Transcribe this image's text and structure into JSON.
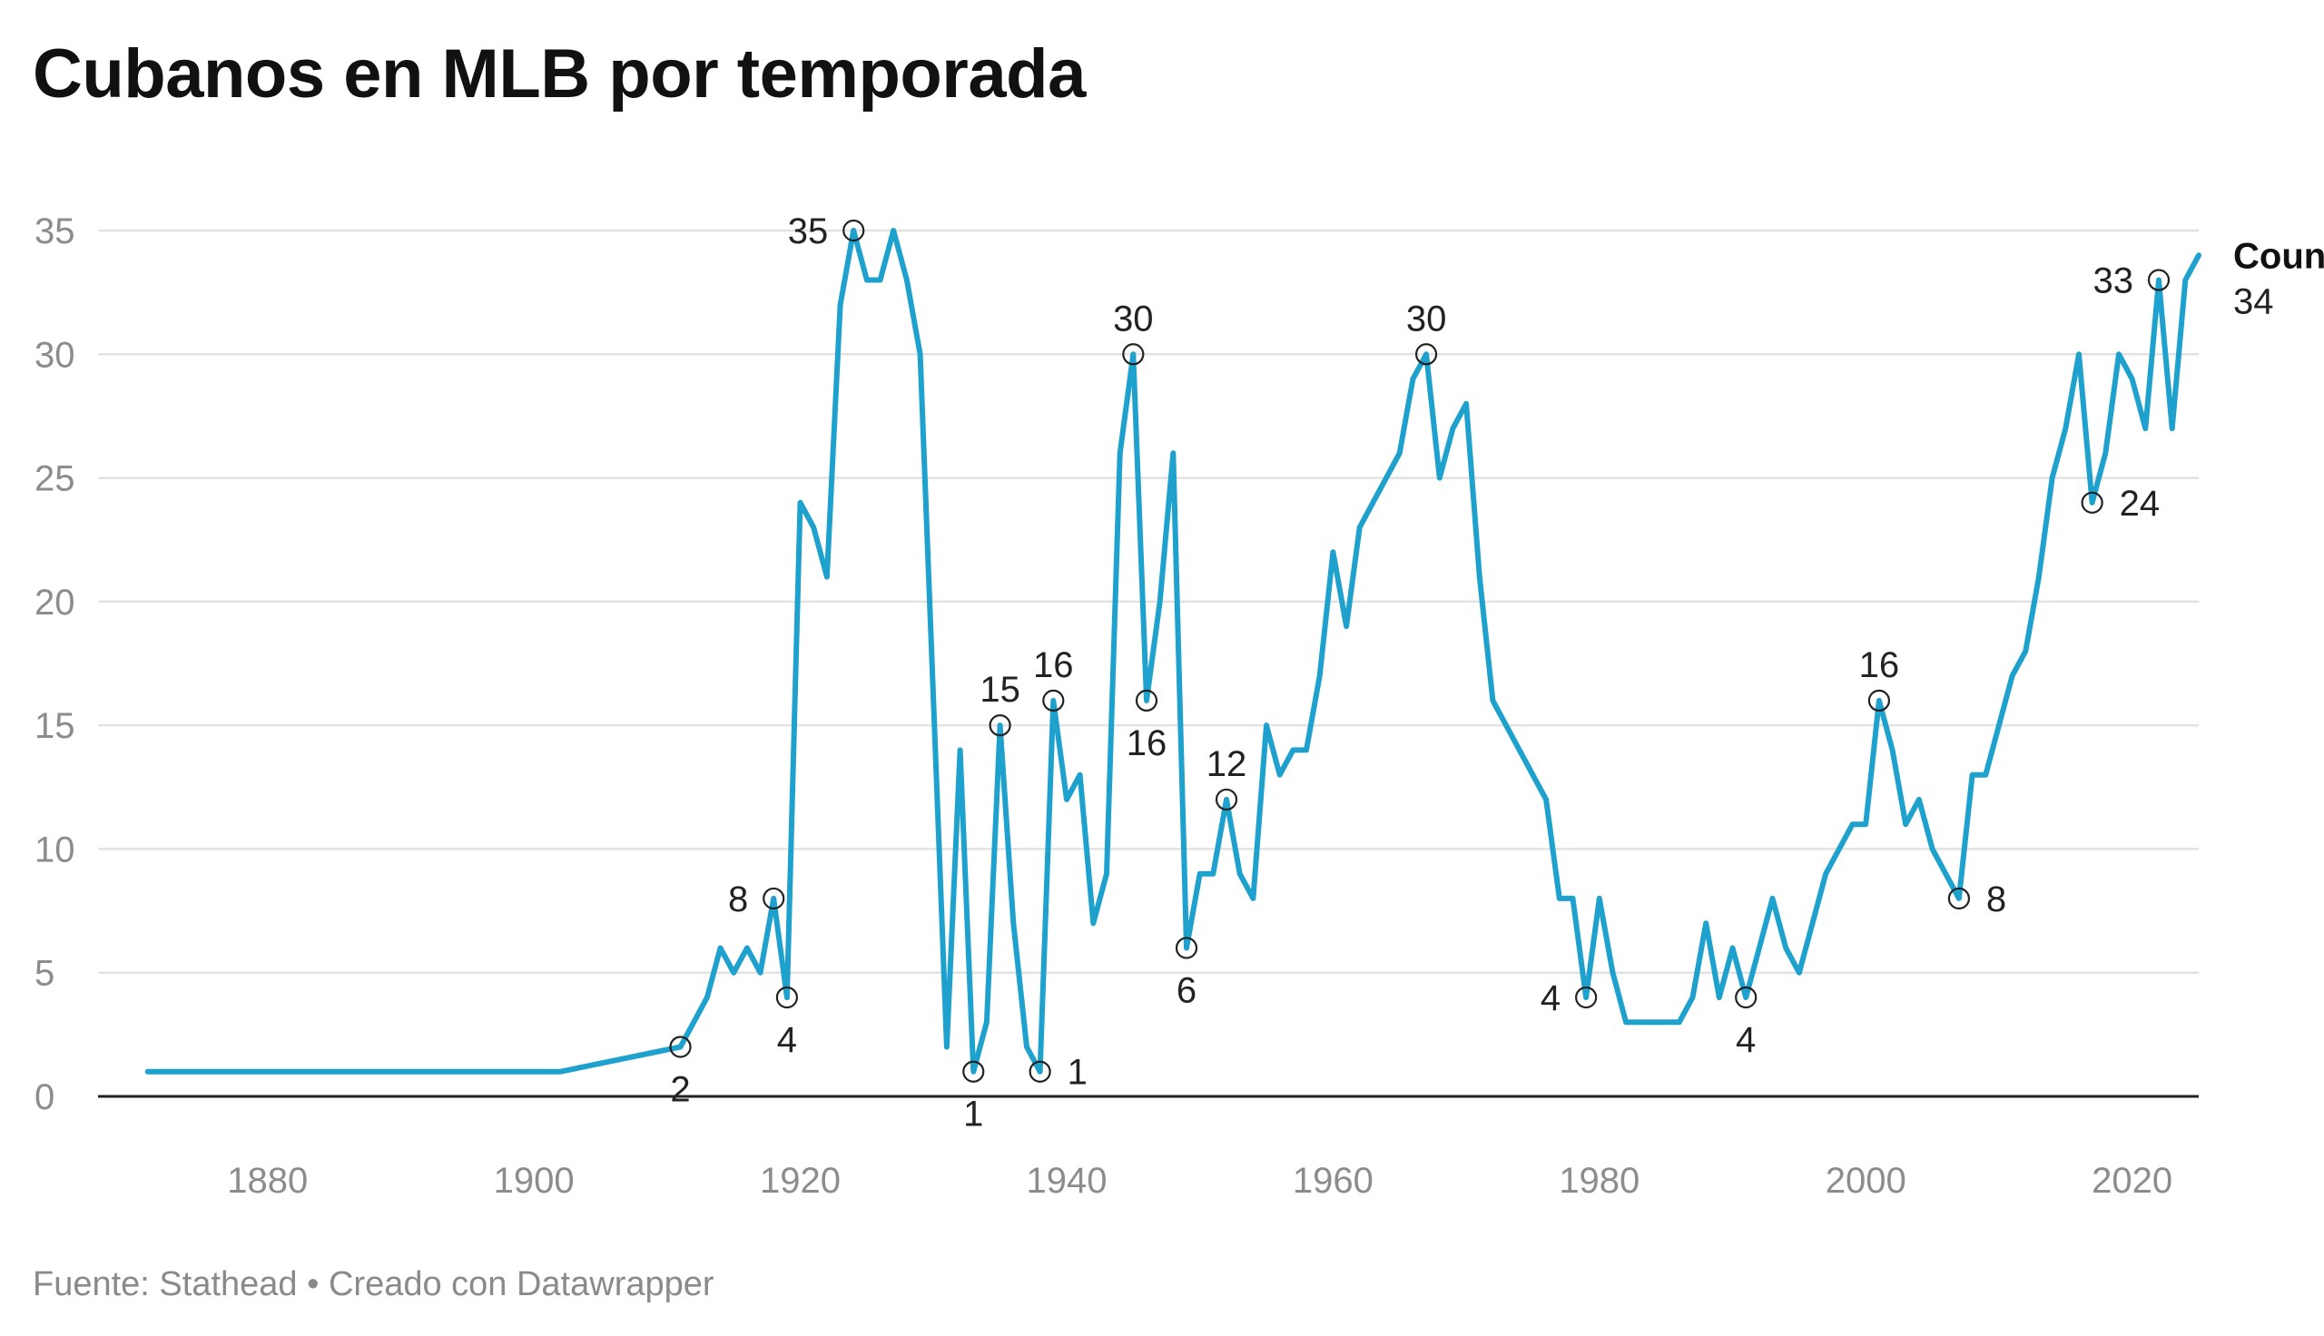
{
  "title": "Cubanos en MLB por temporada",
  "footer": "Fuente: Stathead • Creado con Datawrapper",
  "colors": {
    "line": "#1ea1cd",
    "grid": "#e2e2e2",
    "axis": "#222222",
    "tick": "#8c8c8c"
  },
  "chart_data": {
    "type": "line",
    "title": "Cubanos en MLB por temporada",
    "xlabel": "",
    "ylabel": "",
    "xlim": [
      1870,
      2025
    ],
    "ylim": [
      0,
      35
    ],
    "x_ticks": [
      "1880",
      "1900",
      "1920",
      "1940",
      "1960",
      "1980",
      "2000",
      "2020"
    ],
    "y_ticks": [
      "0",
      "5",
      "10",
      "15",
      "20",
      "25",
      "30",
      "35"
    ],
    "grid": true,
    "legend": "right-of-line-end",
    "series": [
      {
        "name": "Count",
        "last_label": "34",
        "points": [
          [
            1871,
            1
          ],
          [
            1902,
            1
          ],
          [
            1911,
            2
          ],
          [
            1913,
            4
          ],
          [
            1914,
            6
          ],
          [
            1915,
            5
          ],
          [
            1916,
            6
          ],
          [
            1917,
            5
          ],
          [
            1918,
            8
          ],
          [
            1919,
            4
          ],
          [
            1920,
            24
          ],
          [
            1921,
            23
          ],
          [
            1922,
            21
          ],
          [
            1923,
            32
          ],
          [
            1924,
            35
          ],
          [
            1925,
            33
          ],
          [
            1926,
            33
          ],
          [
            1927,
            35
          ],
          [
            1928,
            33
          ],
          [
            1929,
            30
          ],
          [
            1931,
            2
          ],
          [
            1932,
            14
          ],
          [
            1933,
            1
          ],
          [
            1934,
            3
          ],
          [
            1935,
            15
          ],
          [
            1936,
            7
          ],
          [
            1937,
            2
          ],
          [
            1938,
            1
          ],
          [
            1939,
            16
          ],
          [
            1940,
            12
          ],
          [
            1941,
            13
          ],
          [
            1942,
            7
          ],
          [
            1943,
            9
          ],
          [
            1944,
            26
          ],
          [
            1945,
            30
          ],
          [
            1946,
            16
          ],
          [
            1947,
            20
          ],
          [
            1948,
            26
          ],
          [
            1949,
            6
          ],
          [
            1950,
            9
          ],
          [
            1951,
            9
          ],
          [
            1952,
            12
          ],
          [
            1953,
            9
          ],
          [
            1954,
            8
          ],
          [
            1955,
            15
          ],
          [
            1956,
            13
          ],
          [
            1957,
            14
          ],
          [
            1958,
            14
          ],
          [
            1959,
            17
          ],
          [
            1960,
            22
          ],
          [
            1961,
            19
          ],
          [
            1962,
            23
          ],
          [
            1965,
            26
          ],
          [
            1966,
            29
          ],
          [
            1967,
            30
          ],
          [
            1968,
            25
          ],
          [
            1969,
            27
          ],
          [
            1970,
            28
          ],
          [
            1971,
            21
          ],
          [
            1972,
            16
          ],
          [
            1976,
            12
          ],
          [
            1977,
            8
          ],
          [
            1978,
            8
          ],
          [
            1979,
            4
          ],
          [
            1980,
            8
          ],
          [
            1981,
            5
          ],
          [
            1982,
            3
          ],
          [
            1986,
            3
          ],
          [
            1987,
            4
          ],
          [
            1988,
            7
          ],
          [
            1989,
            4
          ],
          [
            1990,
            6
          ],
          [
            1991,
            4
          ],
          [
            1992,
            6
          ],
          [
            1993,
            8
          ],
          [
            1994,
            6
          ],
          [
            1995,
            5
          ],
          [
            1997,
            9
          ],
          [
            1999,
            11
          ],
          [
            2000,
            11
          ],
          [
            2001,
            16
          ],
          [
            2002,
            14
          ],
          [
            2003,
            11
          ],
          [
            2004,
            12
          ],
          [
            2005,
            10
          ],
          [
            2007,
            8
          ],
          [
            2008,
            13
          ],
          [
            2009,
            13
          ],
          [
            2011,
            17
          ],
          [
            2012,
            18
          ],
          [
            2013,
            21
          ],
          [
            2014,
            25
          ],
          [
            2015,
            27
          ],
          [
            2016,
            30
          ],
          [
            2017,
            24
          ],
          [
            2018,
            26
          ],
          [
            2019,
            30
          ],
          [
            2020,
            29
          ],
          [
            2021,
            27
          ],
          [
            2022,
            33
          ],
          [
            2023,
            27
          ],
          [
            2024,
            33
          ],
          [
            2025,
            34
          ]
        ]
      }
    ],
    "annotations": [
      {
        "x": 1911,
        "y": 2,
        "label": "2",
        "pos": "below"
      },
      {
        "x": 1918,
        "y": 8,
        "label": "8",
        "pos": "left"
      },
      {
        "x": 1919,
        "y": 4,
        "label": "4",
        "pos": "below"
      },
      {
        "x": 1924,
        "y": 35,
        "label": "35",
        "pos": "left"
      },
      {
        "x": 1933,
        "y": 1,
        "label": "1",
        "pos": "below"
      },
      {
        "x": 1935,
        "y": 15,
        "label": "15",
        "pos": "above"
      },
      {
        "x": 1938,
        "y": 1,
        "label": "1",
        "pos": "right"
      },
      {
        "x": 1939,
        "y": 16,
        "label": "16",
        "pos": "above"
      },
      {
        "x": 1945,
        "y": 30,
        "label": "30",
        "pos": "above"
      },
      {
        "x": 1946,
        "y": 16,
        "label": "16",
        "pos": "below"
      },
      {
        "x": 1949,
        "y": 6,
        "label": "6",
        "pos": "below"
      },
      {
        "x": 1952,
        "y": 12,
        "label": "12",
        "pos": "above"
      },
      {
        "x": 1967,
        "y": 30,
        "label": "30",
        "pos": "above"
      },
      {
        "x": 1979,
        "y": 4,
        "label": "4",
        "pos": "left"
      },
      {
        "x": 1991,
        "y": 4,
        "label": "4",
        "pos": "below"
      },
      {
        "x": 2001,
        "y": 16,
        "label": "16",
        "pos": "above"
      },
      {
        "x": 2007,
        "y": 8,
        "label": "8",
        "pos": "right"
      },
      {
        "x": 2017,
        "y": 24,
        "label": "24",
        "pos": "right"
      },
      {
        "x": 2022,
        "y": 33,
        "label": "33",
        "pos": "left"
      }
    ]
  }
}
